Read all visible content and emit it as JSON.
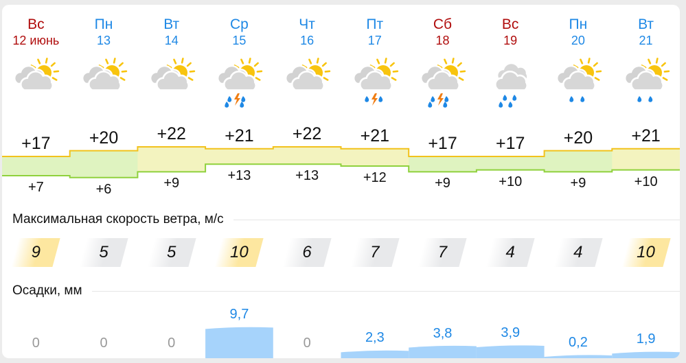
{
  "colors": {
    "weekend": "#b00d0d",
    "weekday": "#1e88e5",
    "precip_bar": "#a6d3fb",
    "precip_text": "#1e88e5",
    "zero_text": "#999999",
    "wind_high": "#fde7a0",
    "wind_normal": "#e8e9eb",
    "temp_band_warm": "#f3f3bf",
    "temp_band_cool": "#dff3c0",
    "max_line": "#f2c21c",
    "min_line": "#8fd13c"
  },
  "days": [
    {
      "name": "Вс",
      "date": "12 июнь",
      "weekend": true,
      "icon": "partly-cloudy",
      "tmax": "+17",
      "tmin": "+7",
      "max": 17,
      "min": 7,
      "wind": "9",
      "wind_high": true,
      "precip": "0",
      "precip_mm": 0
    },
    {
      "name": "Пн",
      "date": "13",
      "weekend": false,
      "icon": "partly-cloudy",
      "tmax": "+20",
      "tmin": "+6",
      "max": 20,
      "min": 6,
      "wind": "5",
      "wind_high": false,
      "precip": "0",
      "precip_mm": 0
    },
    {
      "name": "Вт",
      "date": "14",
      "weekend": false,
      "icon": "partly-cloudy",
      "tmax": "+22",
      "tmin": "+9",
      "max": 22,
      "min": 9,
      "wind": "5",
      "wind_high": false,
      "precip": "0",
      "precip_mm": 0
    },
    {
      "name": "Ср",
      "date": "15",
      "weekend": false,
      "icon": "partly-cloudy-heavy-rain-thunder",
      "tmax": "+21",
      "tmin": "+13",
      "max": 21,
      "min": 13,
      "wind": "10",
      "wind_high": true,
      "precip": "9,7",
      "precip_mm": 9.7
    },
    {
      "name": "Чт",
      "date": "16",
      "weekend": false,
      "icon": "partly-cloudy",
      "tmax": "+22",
      "tmin": "+13",
      "max": 22,
      "min": 13,
      "wind": "6",
      "wind_high": false,
      "precip": "0",
      "precip_mm": 0
    },
    {
      "name": "Пт",
      "date": "17",
      "weekend": false,
      "icon": "partly-cloudy-rain-thunder",
      "tmax": "+21",
      "tmin": "+12",
      "max": 21,
      "min": 12,
      "wind": "7",
      "wind_high": false,
      "precip": "2,3",
      "precip_mm": 2.3
    },
    {
      "name": "Сб",
      "date": "18",
      "weekend": true,
      "icon": "partly-cloudy-heavy-rain-thunder",
      "tmax": "+17",
      "tmin": "+9",
      "max": 17,
      "min": 9,
      "wind": "7",
      "wind_high": false,
      "precip": "3,8",
      "precip_mm": 3.8
    },
    {
      "name": "Вс",
      "date": "19",
      "weekend": true,
      "icon": "cloudy-heavy-rain",
      "tmax": "+17",
      "tmin": "+10",
      "max": 17,
      "min": 10,
      "wind": "4",
      "wind_high": false,
      "precip": "3,9",
      "precip_mm": 3.9
    },
    {
      "name": "Пн",
      "date": "20",
      "weekend": false,
      "icon": "partly-cloudy-rain",
      "tmax": "+20",
      "tmin": "+9",
      "max": 20,
      "min": 9,
      "wind": "4",
      "wind_high": false,
      "precip": "0,2",
      "precip_mm": 0.2
    },
    {
      "name": "Вт",
      "date": "21",
      "weekend": false,
      "icon": "partly-cloudy-rain",
      "tmax": "+21",
      "tmin": "+10",
      "max": 21,
      "min": 10,
      "wind": "10",
      "wind_high": true,
      "precip": "1,9",
      "precip_mm": 1.9
    }
  ],
  "sections": {
    "wind_title": "Максимальная скорость ветра, м/с",
    "precip_title": "Осадки, мм"
  }
}
